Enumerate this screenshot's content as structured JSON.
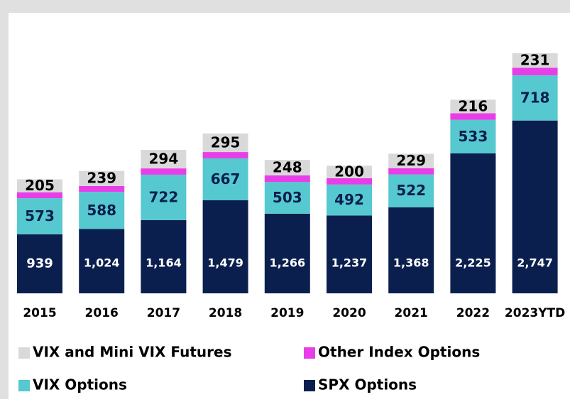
{
  "chart_data": {
    "type": "stacked_bar",
    "categories": [
      "2015",
      "2016",
      "2017",
      "2018",
      "2019",
      "2020",
      "2021",
      "2022",
      "2023YTD"
    ],
    "series": [
      {
        "name": "SPX Options",
        "color": "#0b1f4f",
        "values": [
          939,
          1024,
          1164,
          1479,
          1266,
          1237,
          1368,
          2225,
          2747
        ],
        "value_labels": [
          "939",
          "1,024",
          "1,164",
          "1,479",
          "1,266",
          "1,237",
          "1,368",
          "2,225",
          "2,747"
        ]
      },
      {
        "name": "VIX Options",
        "color": "#56c8cf",
        "values": [
          573,
          588,
          722,
          667,
          503,
          492,
          522,
          533,
          718
        ]
      },
      {
        "name": "Other Index Options",
        "color": "#e83ee8",
        "values": [
          95,
          95,
          100,
          100,
          105,
          100,
          100,
          105,
          120
        ],
        "show_labels": false
      },
      {
        "name": "VIX and Mini VIX Futures",
        "color": "#d9d9d9",
        "values": [
          205,
          239,
          294,
          295,
          248,
          200,
          229,
          216,
          231
        ]
      }
    ]
  }
}
